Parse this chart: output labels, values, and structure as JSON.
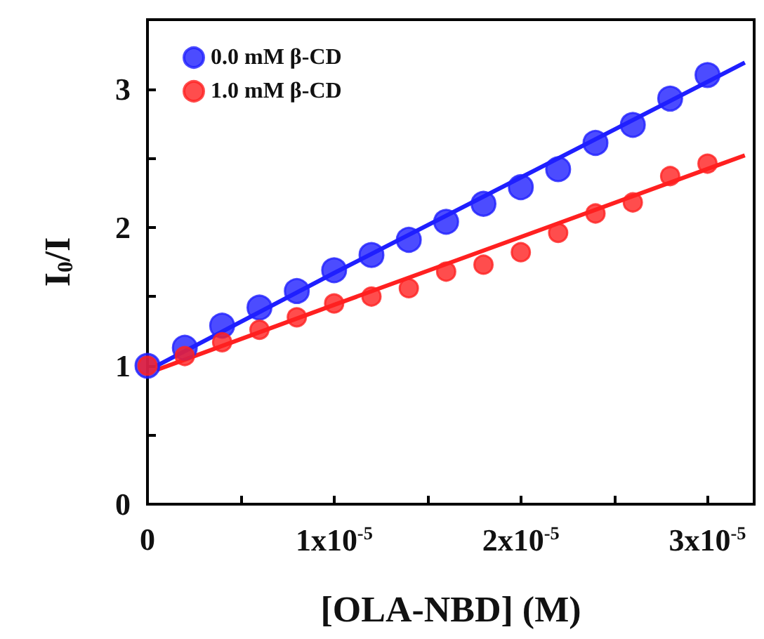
{
  "chart_data": {
    "type": "scatter",
    "xlabel": "[OLA-NBD] (M)",
    "ylabel": "I$_{0}$/I",
    "x": [
      0,
      2e-06,
      4e-06,
      6e-06,
      8e-06,
      1e-05,
      1.2e-05,
      1.4e-05,
      1.6e-05,
      1.8e-05,
      2e-05,
      2.2e-05,
      2.4e-05,
      2.6e-05,
      2.8e-05,
      3e-05
    ],
    "series": [
      {
        "name": "0.0 mM β-CD",
        "color": "#1f1fff",
        "values": [
          1.0,
          1.13,
          1.29,
          1.42,
          1.54,
          1.69,
          1.8,
          1.91,
          2.04,
          2.17,
          2.29,
          2.42,
          2.61,
          2.74,
          2.93,
          3.1
        ]
      },
      {
        "name": "1.0 mM β-CD",
        "color": "#ff2020",
        "values": [
          1.0,
          1.07,
          1.17,
          1.26,
          1.35,
          1.45,
          1.5,
          1.56,
          1.68,
          1.73,
          1.82,
          1.96,
          2.1,
          2.18,
          2.37,
          2.46
        ]
      },
      {
        "type": "line",
        "color": "#1f1fff",
        "x": [
          5e-07,
          1e-05,
          2e-05,
          3.2e-05
        ],
        "values": [
          1.0,
          1.67,
          2.36,
          3.19
        ],
        "marker": "none"
      },
      {
        "type": "line",
        "color": "#ff2020",
        "x": [
          5e-07,
          1e-05,
          2e-05,
          3.2e-05
        ],
        "values": [
          0.97,
          1.44,
          1.93,
          2.52
        ],
        "marker": "none"
      }
    ],
    "xlim": [
      0,
      3.25e-05
    ],
    "ylim": [
      0,
      3.5
    ],
    "xticks": [
      0,
      {
        "value": 5e-06,
        "label": null
      },
      {
        "value": 1e-05,
        "label": "1x10$^{-5}$"
      },
      {
        "value": 1.5e-05,
        "label": null
      },
      {
        "value": 2e-05,
        "label": "2x10$^{-5}$"
      },
      {
        "value": 2.5e-05,
        "label": null
      },
      {
        "value": 3e-05,
        "label": "3x10$^{-5}$"
      }
    ],
    "yticks": [
      0,
      {
        "value": 0.5,
        "label": null
      },
      1,
      {
        "value": 1.5,
        "label": null
      },
      2,
      {
        "value": 2.5,
        "label": null
      },
      3
    ],
    "grid": false,
    "legend": "top left",
    "marker": "circle",
    "line_style": "solid"
  }
}
